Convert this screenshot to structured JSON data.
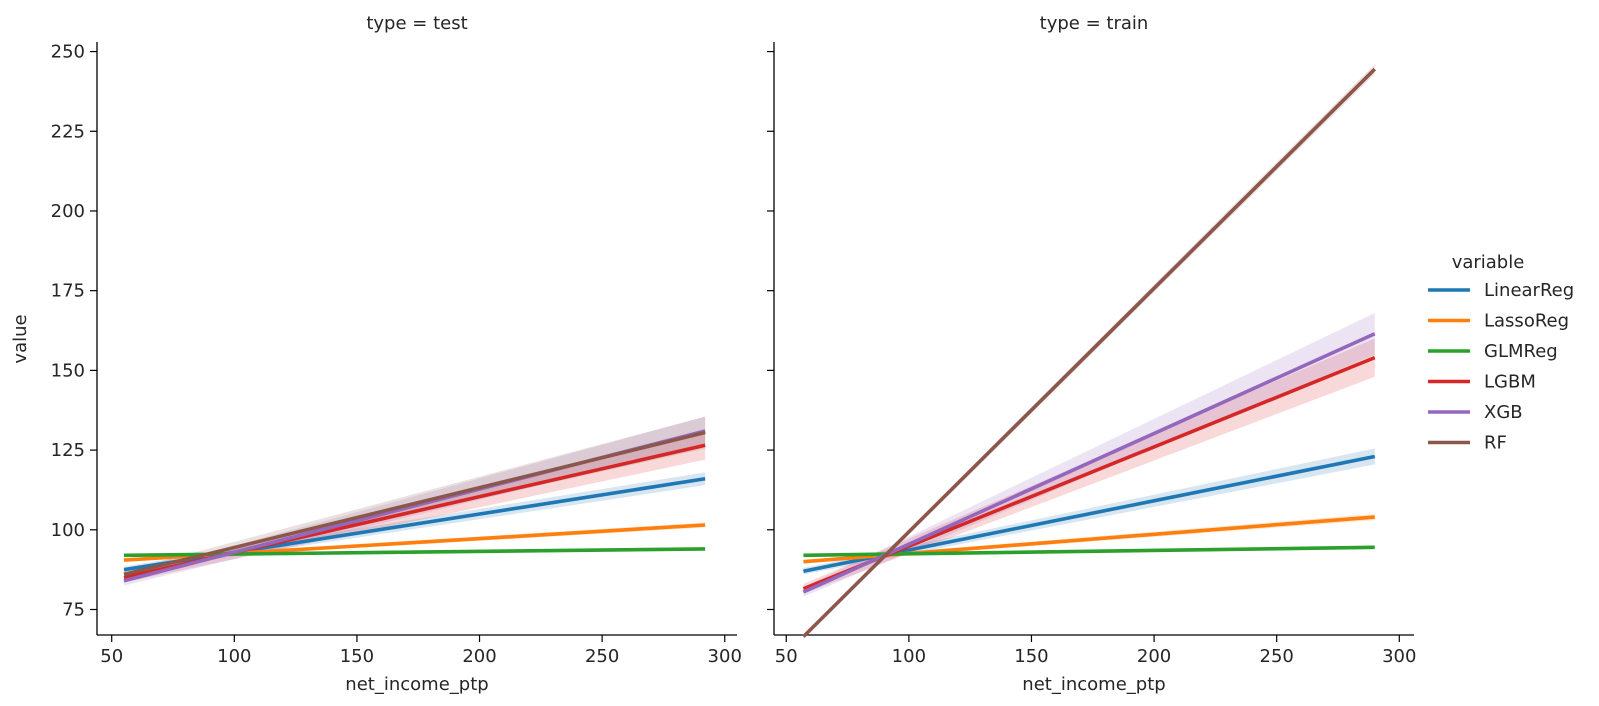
{
  "figure": {
    "ylabel": "value",
    "legend_title": "variable",
    "legend_placement": "right"
  },
  "chart_data": [
    {
      "type": "line",
      "title": "type = test",
      "xlabel": "net_income_ptp",
      "ylabel": "value",
      "xlim": [
        44,
        305
      ],
      "ylim": [
        67,
        253
      ],
      "xticks": [
        50,
        100,
        150,
        200,
        250,
        300
      ],
      "yticks": [
        75,
        100,
        125,
        150,
        175,
        200,
        225,
        250
      ],
      "grid": false,
      "series": [
        {
          "name": "LinearReg",
          "color": "#1f77b4",
          "x": [
            55,
            292
          ],
          "y": [
            87.5,
            116.0
          ],
          "band": [
            1.0,
            2.0
          ]
        },
        {
          "name": "LassoReg",
          "color": "#ff7f0e",
          "x": [
            55,
            292
          ],
          "y": [
            90.5,
            101.5
          ],
          "band": [
            0.5,
            0.8
          ]
        },
        {
          "name": "GLMReg",
          "color": "#2ca02c",
          "x": [
            55,
            292
          ],
          "y": [
            92.0,
            94.0
          ],
          "band": [
            0.3,
            0.4
          ]
        },
        {
          "name": "LGBM",
          "color": "#d62728",
          "x": [
            55,
            292
          ],
          "y": [
            85.0,
            126.5
          ],
          "band": [
            1.5,
            4.5
          ]
        },
        {
          "name": "XGB",
          "color": "#9467bd",
          "x": [
            55,
            292
          ],
          "y": [
            84.0,
            131.0
          ],
          "band": [
            1.5,
            4.5
          ]
        },
        {
          "name": "RF",
          "color": "#8c564b",
          "x": [
            55,
            292
          ],
          "y": [
            86.0,
            130.5
          ],
          "band": [
            1.0,
            5.0
          ]
        }
      ]
    },
    {
      "type": "line",
      "title": "type = train",
      "xlabel": "net_income_ptp",
      "ylabel": "",
      "xlim": [
        45,
        306
      ],
      "ylim": [
        67,
        253
      ],
      "xticks": [
        50,
        100,
        150,
        200,
        250,
        300
      ],
      "yticks": [
        75,
        100,
        125,
        150,
        175,
        200,
        225,
        250
      ],
      "grid": false,
      "series": [
        {
          "name": "LinearReg",
          "color": "#1f77b4",
          "x": [
            57,
            290
          ],
          "y": [
            87.0,
            123.0
          ],
          "band": [
            1.0,
            2.5
          ]
        },
        {
          "name": "LassoReg",
          "color": "#ff7f0e",
          "x": [
            57,
            290
          ],
          "y": [
            90.0,
            104.0
          ],
          "band": [
            0.5,
            1.0
          ]
        },
        {
          "name": "GLMReg",
          "color": "#2ca02c",
          "x": [
            57,
            290
          ],
          "y": [
            92.0,
            94.5
          ],
          "band": [
            0.3,
            0.5
          ]
        },
        {
          "name": "LGBM",
          "color": "#d62728",
          "x": [
            57,
            290
          ],
          "y": [
            81.5,
            154.0
          ],
          "band": [
            1.5,
            6.0
          ]
        },
        {
          "name": "XGB",
          "color": "#9467bd",
          "x": [
            57,
            290
          ],
          "y": [
            80.5,
            161.5
          ],
          "band": [
            1.5,
            6.5
          ]
        },
        {
          "name": "RF",
          "color": "#8c564b",
          "x": [
            57,
            290
          ],
          "y": [
            66.5,
            244.5
          ],
          "band": [
            0.6,
            1.5
          ]
        }
      ]
    }
  ]
}
